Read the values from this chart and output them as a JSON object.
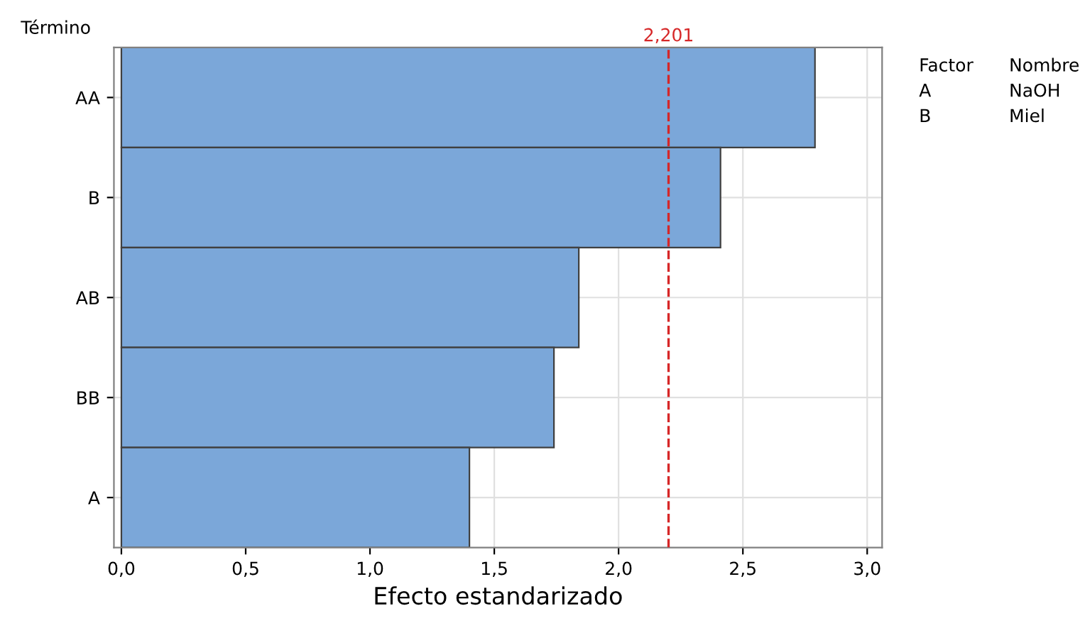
{
  "chart_data": {
    "type": "bar",
    "orientation": "horizontal",
    "categories": [
      "AA",
      "B",
      "AB",
      "BB",
      "A"
    ],
    "values": [
      2.79,
      2.41,
      1.84,
      1.74,
      1.4
    ],
    "color": "#7ba7d9",
    "xlabel": "Efecto estandarizado",
    "ylabel": "Término",
    "xlim": [
      -0.03,
      3.06
    ],
    "xticks": [
      {
        "value": 0,
        "label": "0,0"
      },
      {
        "value": 0.5,
        "label": "0,5"
      },
      {
        "value": 1,
        "label": "1,0"
      },
      {
        "value": 1.5,
        "label": "1,5"
      },
      {
        "value": 2,
        "label": "2,0"
      },
      {
        "value": 2.5,
        "label": "2,5"
      },
      {
        "value": 3,
        "label": "3,0"
      }
    ],
    "ref_lines": [
      {
        "axis": "x",
        "value": 2.201,
        "label": "2,201",
        "color": "#d62728",
        "line_style": "dashed"
      }
    ],
    "annotations": [
      "Factor",
      "Nombre",
      "A",
      "NaOH",
      "B",
      "Miel"
    ],
    "grid": true
  }
}
